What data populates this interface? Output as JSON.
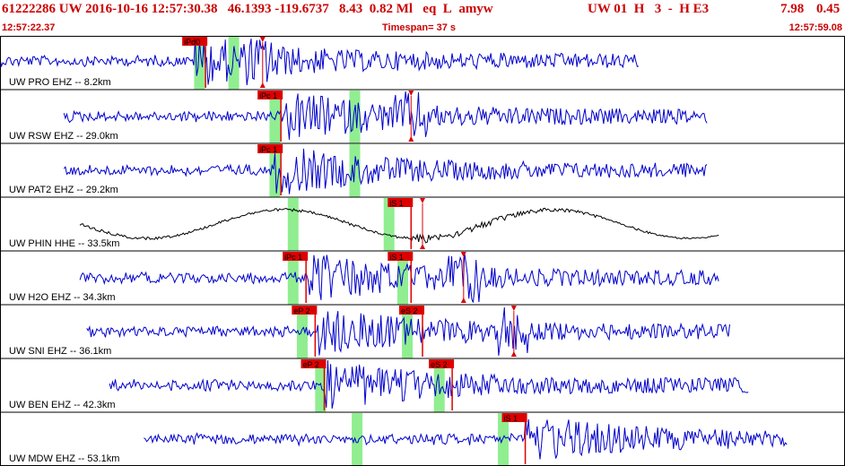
{
  "header": {
    "event_id": "61222286",
    "network": "UW",
    "datetime": "2016-10-16 12:57:30.38",
    "lat": "46.1393",
    "lon": "-119.6737",
    "depth": "8.43",
    "magnitude": "0.82",
    "mag_type": "Ml",
    "event_type": "eq",
    "review": "L",
    "source": "amyw",
    "right_block": "UW 01  H   3  -  H E3",
    "num1": "7.98",
    "num2": "0.45"
  },
  "subheader": {
    "start_time": "12:57:22.37",
    "timespan": "Timespan=  37 s",
    "end_time": "12:57:59.08"
  },
  "colors": {
    "header_text": "#cc0000",
    "trace_blue": "#0000cc",
    "trace_black": "#000000",
    "pick_red": "#dd0000",
    "window_green": "#90ee90"
  },
  "chart_data": {
    "type": "line",
    "title": "61222286 UW 2016-10-16 12:57:30.38",
    "x_range_seconds": [
      0,
      37
    ],
    "channels": [
      {
        "label": "UW PRO EHZ -- 8.2km",
        "color": "blue",
        "start": 0.0,
        "end": 28.0,
        "onset": 8.5,
        "picks": [
          {
            "label": "iPd0",
            "t": 9.0
          }
        ],
        "s_marker": 11.5,
        "green": [
          8.5,
          10.0
        ]
      },
      {
        "label": "UW RSW EHZ -- 29.0km",
        "color": "blue",
        "start": 2.8,
        "end": 31.0,
        "onset": 12.5,
        "picks": [
          {
            "label": "iPc 1",
            "t": 12.3
          }
        ],
        "s_marker": 18.0,
        "green": [
          11.8,
          15.3
        ]
      },
      {
        "label": "UW PAT2 EHZ -- 29.2km",
        "color": "blue",
        "start": 2.8,
        "end": 31.0,
        "onset": 12.0,
        "picks": [
          {
            "label": "iPc 1",
            "t": 12.3
          }
        ],
        "s_marker": null,
        "green": [
          11.8,
          15.3
        ]
      },
      {
        "label": "UW PHIN HHE -- 33.5km",
        "color": "black",
        "start": 3.5,
        "end": 31.5,
        "onset": 18.0,
        "picks": [
          {
            "label": "iS 1",
            "t": 18.0
          }
        ],
        "s_marker": 18.5,
        "green": [
          12.6,
          16.8
        ]
      },
      {
        "label": "UW H2O EHZ -- 34.3km",
        "color": "blue",
        "start": 3.5,
        "end": 31.5,
        "onset": 13.5,
        "picks": [
          {
            "label": "iPc 1",
            "t": 13.4
          },
          {
            "label": "iS 1",
            "t": 18.0
          }
        ],
        "s_marker": 20.3,
        "green": [
          12.6,
          17.4
        ]
      },
      {
        "label": "UW SNI EHZ -- 36.1km",
        "color": "blue",
        "start": 3.8,
        "end": 32.0,
        "onset": 13.8,
        "picks": [
          {
            "label": "eP 2",
            "t": 13.8
          },
          {
            "label": "eS 2",
            "t": 18.5
          }
        ],
        "s_marker": 22.5,
        "green": [
          13.0,
          17.6
        ]
      },
      {
        "label": "UW BEN EHZ -- 42.3km",
        "color": "blue",
        "start": 4.8,
        "end": 32.8,
        "onset": 14.2,
        "picks": [
          {
            "label": "eP 2",
            "t": 14.2
          },
          {
            "label": "eS 2",
            "t": 19.8
          }
        ],
        "s_marker": null,
        "green": [
          13.8,
          19.0
        ]
      },
      {
        "label": "UW MDW EHZ -- 53.1km",
        "color": "blue",
        "start": 6.3,
        "end": 34.5,
        "onset": 23.0,
        "picks": [
          {
            "label": "iS 1",
            "t": 23.0
          }
        ],
        "s_marker": null,
        "green": [
          15.4,
          21.8
        ]
      }
    ]
  }
}
